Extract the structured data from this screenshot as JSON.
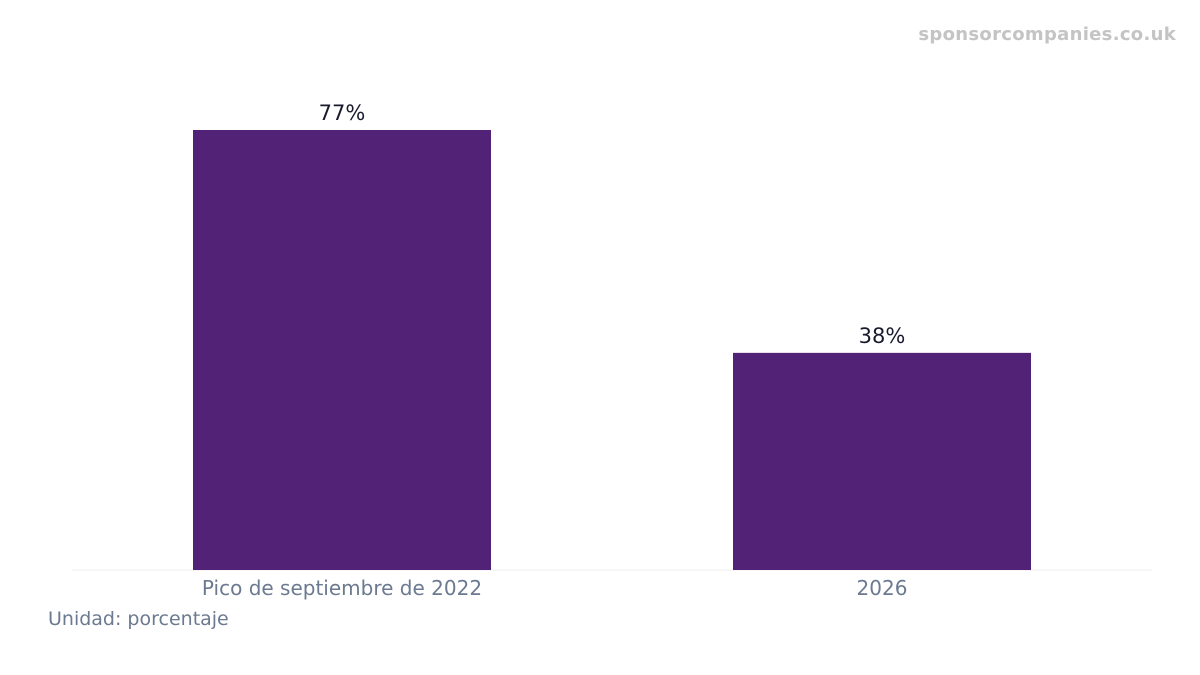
{
  "watermark": "sponsorcompanies.co.uk",
  "unit_note": "Unidad: porcentaje",
  "colors": {
    "bar": "#522276",
    "value_label": "#1a1a2e",
    "category_label": "#6b7a90",
    "baseline": "#eeeeee"
  },
  "chart_data": {
    "type": "bar",
    "categories": [
      "Pico de septiembre de 2022",
      "2026"
    ],
    "values": [
      77,
      38
    ],
    "value_labels": [
      "77%",
      "38%"
    ],
    "title": "",
    "xlabel": "",
    "ylabel": "",
    "ylim": [
      0,
      77
    ],
    "grid": false,
    "legend": "none"
  }
}
